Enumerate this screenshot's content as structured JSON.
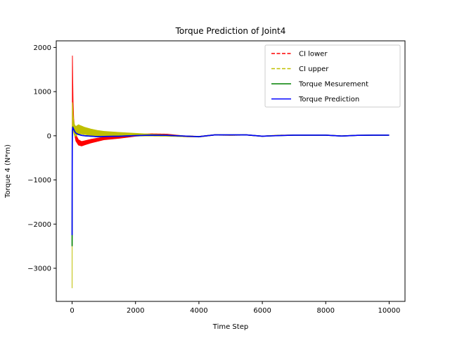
{
  "chart_data": {
    "type": "line",
    "title": "Torque Prediction of Joint4",
    "xlabel": "Time Step",
    "ylabel": "Torque 4 (N*m)",
    "xlim": [
      -500,
      10500
    ],
    "ylim": [
      -3750,
      2150
    ],
    "xticks": [
      0,
      2000,
      4000,
      6000,
      8000,
      10000
    ],
    "xtick_labels": [
      "0",
      "2000",
      "4000",
      "6000",
      "8000",
      "10000"
    ],
    "yticks": [
      2000,
      1000,
      0,
      -1000,
      -2000,
      -3000
    ],
    "ytick_labels": [
      "2000",
      "1000",
      "0",
      "−1000",
      "−2000",
      "−3000"
    ],
    "grid": false,
    "legend_position": "top-right",
    "series": [
      {
        "name": "CI lower",
        "color": "#ff0000",
        "style": "dashed",
        "x": [
          0,
          10,
          20,
          30,
          50,
          80,
          120,
          200,
          300,
          400,
          600,
          800,
          1000,
          1500,
          2000,
          2500,
          3000,
          3500,
          4000,
          4500,
          5000,
          5500,
          6000,
          6500,
          7000,
          7500,
          8000,
          8500,
          9000,
          9500,
          10000
        ],
        "values": [
          -2300,
          1750,
          1200,
          700,
          300,
          100,
          -50,
          -150,
          -180,
          -160,
          -120,
          -90,
          -60,
          -30,
          10,
          30,
          25,
          -10,
          -20,
          20,
          15,
          20,
          -10,
          10,
          15,
          15,
          15,
          -5,
          10,
          15,
          15
        ],
        "band_amplitude": [
          0,
          60,
          80,
          90,
          90,
          80,
          70,
          60,
          50,
          45,
          40,
          35,
          30,
          25,
          20,
          15,
          12,
          10,
          8,
          6,
          6,
          5,
          5,
          5,
          5,
          5,
          5,
          5,
          5,
          5,
          5
        ]
      },
      {
        "name": "CI upper",
        "color": "#bfbf00",
        "style": "dashed",
        "x": [
          0,
          5,
          10,
          20,
          30,
          50,
          80,
          120,
          200,
          300,
          400,
          600,
          800,
          1000,
          1500,
          2000,
          2500,
          3000,
          3500,
          4000,
          4500,
          5000,
          5500,
          6000,
          6500,
          7000,
          7500,
          8000,
          8500,
          9000,
          9500,
          10000
        ],
        "values": [
          -3450,
          -500,
          600,
          500,
          350,
          200,
          120,
          100,
          150,
          130,
          110,
          80,
          60,
          50,
          35,
          25,
          15,
          5,
          -10,
          -20,
          20,
          15,
          20,
          -10,
          10,
          15,
          15,
          15,
          -5,
          10,
          15,
          15
        ],
        "band_amplitude": [
          0,
          100,
          150,
          150,
          140,
          130,
          120,
          110,
          100,
          90,
          80,
          70,
          60,
          50,
          40,
          30,
          20,
          15,
          10,
          8,
          6,
          6,
          5,
          5,
          5,
          5,
          5,
          5,
          5,
          5,
          5,
          5
        ]
      },
      {
        "name": "Torque Mesurement",
        "color": "#008000",
        "style": "solid",
        "x": [
          0,
          5,
          10,
          20,
          30,
          50,
          80,
          120,
          200,
          300,
          400,
          600,
          800,
          1000,
          1500,
          2000,
          2500,
          3000,
          3500,
          4000,
          4500,
          5000,
          5500,
          6000,
          6500,
          7000,
          7500,
          8000,
          8500,
          9000,
          9500,
          10000
        ],
        "values": [
          -2500,
          -200,
          100,
          200,
          180,
          150,
          100,
          60,
          30,
          10,
          0,
          -10,
          -20,
          -15,
          -10,
          5,
          15,
          10,
          -5,
          -20,
          20,
          20,
          20,
          -10,
          5,
          15,
          15,
          15,
          -5,
          10,
          15,
          15
        ]
      },
      {
        "name": "Torque Prediction",
        "color": "#0000ff",
        "style": "solid",
        "x": [
          0,
          5,
          10,
          20,
          30,
          50,
          80,
          120,
          200,
          300,
          400,
          600,
          800,
          1000,
          1500,
          2000,
          2500,
          3000,
          3500,
          4000,
          4500,
          5000,
          5500,
          6000,
          6500,
          7000,
          7500,
          8000,
          8500,
          9000,
          9500,
          10000
        ],
        "values": [
          -2250,
          -150,
          120,
          190,
          170,
          140,
          100,
          60,
          30,
          10,
          0,
          -10,
          -20,
          -15,
          -10,
          5,
          15,
          10,
          -5,
          -20,
          20,
          20,
          20,
          -10,
          5,
          15,
          15,
          15,
          -5,
          10,
          15,
          15
        ]
      }
    ]
  }
}
